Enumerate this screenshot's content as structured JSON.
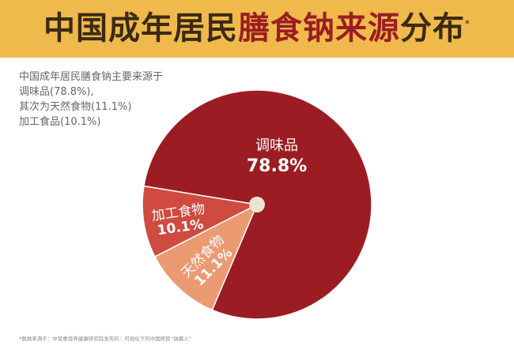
{
  "header": {
    "title_plain": "中国成年居民",
    "title_highlight": "膳食钠来源",
    "title_end": "分布",
    "title_mark": "*"
  },
  "description": [
    "中国成年居民膳食钠主要来源于",
    "调味品(78.8%),",
    "其次为天然食物(11.1%)",
    "加工食品(10.1%)"
  ],
  "footnote": "*数据来源于：中营惠营养健康研究院发布的：可视化下的中国居民“钠摄入”",
  "chart_data": {
    "type": "pie",
    "slices": [
      {
        "label": "天然食物",
        "value": 11.1,
        "display": "11.1%",
        "color": "#eb9a72"
      },
      {
        "label": "加工食物",
        "value": 10.1,
        "display": "10.1%",
        "color": "#cf4b3f"
      },
      {
        "label": "调味品",
        "value": 78.8,
        "display": "78.8%",
        "color": "#9b1d23"
      }
    ],
    "center_dot_color": "#ebe3d3"
  }
}
